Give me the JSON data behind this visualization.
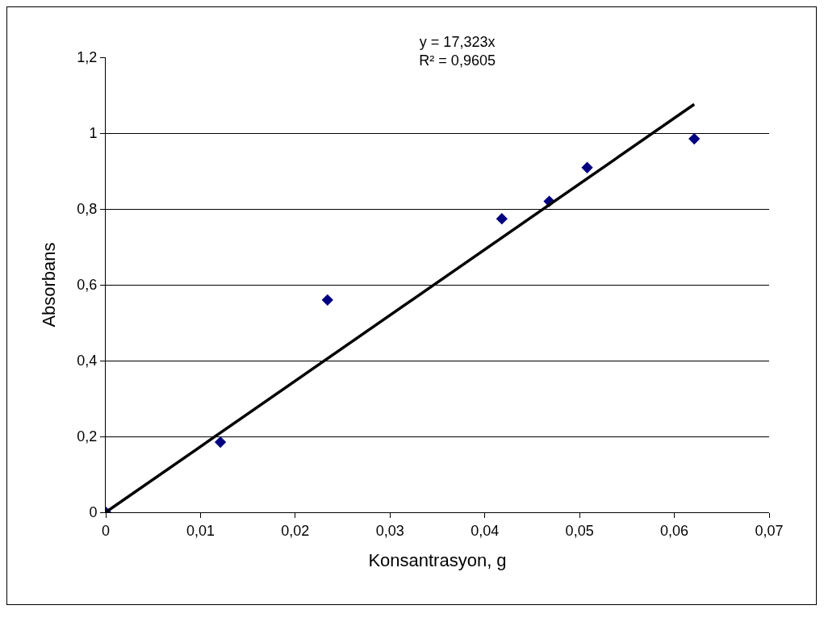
{
  "chart_data": {
    "type": "scatter",
    "title": "y = 17,323x\nR² = 0,9605",
    "xlabel": "Konsantrasyon, g",
    "ylabel": "Absorbans",
    "series": [
      {
        "color": "#000080",
        "marker": "diamond",
        "x": [
          0,
          0.0121,
          0.0234,
          0.0418,
          0.0468,
          0.0508,
          0.0621
        ],
        "values": [
          0,
          0.185,
          0.56,
          0.774,
          0.82,
          0.909,
          0.985
        ]
      },
      {
        "type": "line",
        "color": "#000000",
        "marker": "none",
        "line_style": "solid",
        "x": [
          0,
          0.0621
        ],
        "values": [
          0,
          1.076
        ]
      }
    ],
    "xlim": [
      0,
      0.07
    ],
    "ylim": [
      0,
      1.2
    ],
    "xticks": [
      0,
      {
        "value": 0.01,
        "label": "0,01"
      },
      {
        "value": 0.02,
        "label": "0,02"
      },
      {
        "value": 0.03,
        "label": "0,03"
      },
      {
        "value": 0.04,
        "label": "0,04"
      },
      {
        "value": 0.05,
        "label": "0,05"
      },
      {
        "value": 0.06,
        "label": "0,06"
      },
      {
        "value": 0.07,
        "label": "0,07"
      }
    ],
    "yticks": [
      0,
      {
        "value": 0.2,
        "label": "0,2"
      },
      {
        "value": 0.4,
        "label": "0,4"
      },
      {
        "value": 0.6,
        "label": "0,6"
      },
      {
        "value": 0.8,
        "label": "0,8"
      },
      1,
      {
        "value": 1.2,
        "label": "1,2"
      }
    ],
    "grid": "y"
  }
}
